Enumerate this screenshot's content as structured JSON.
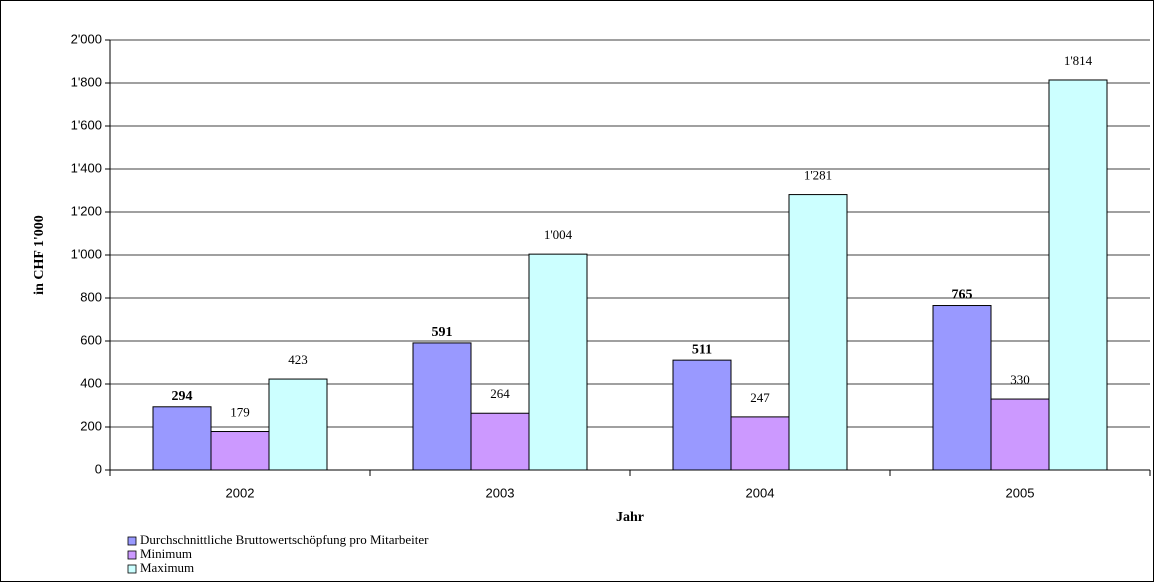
{
  "chart_data": {
    "type": "bar",
    "y_label": "in CHF 1'000",
    "x_label": "Jahr",
    "categories": [
      "2002",
      "2003",
      "2004",
      "2005"
    ],
    "series": [
      {
        "name": "Durchschnittliche Bruttowertschöpfung pro Mitarbeiter",
        "color": "#9999ff",
        "values": [
          294,
          591,
          511,
          765
        ]
      },
      {
        "name": "Minimum",
        "color": "#cc99ff",
        "values": [
          179,
          264,
          247,
          330
        ]
      },
      {
        "name": "Maximum",
        "color": "#ccffff",
        "values": [
          423,
          1004,
          1281,
          1814
        ],
        "value_labels": [
          "423",
          "1'004",
          "1'281",
          "1'814"
        ]
      }
    ],
    "ylim": [
      0,
      2000
    ],
    "yticks": [
      0,
      200,
      400,
      600,
      800,
      {
        "value": 1000,
        "label": "1'000"
      },
      {
        "value": 1200,
        "label": "1'200"
      },
      {
        "value": 1400,
        "label": "1'400"
      },
      {
        "value": 1600,
        "label": "1'600"
      },
      {
        "value": 1800,
        "label": "1'800"
      },
      {
        "value": 2000,
        "label": "2'000"
      }
    ],
    "grid": true,
    "legend": "bottom-left"
  }
}
